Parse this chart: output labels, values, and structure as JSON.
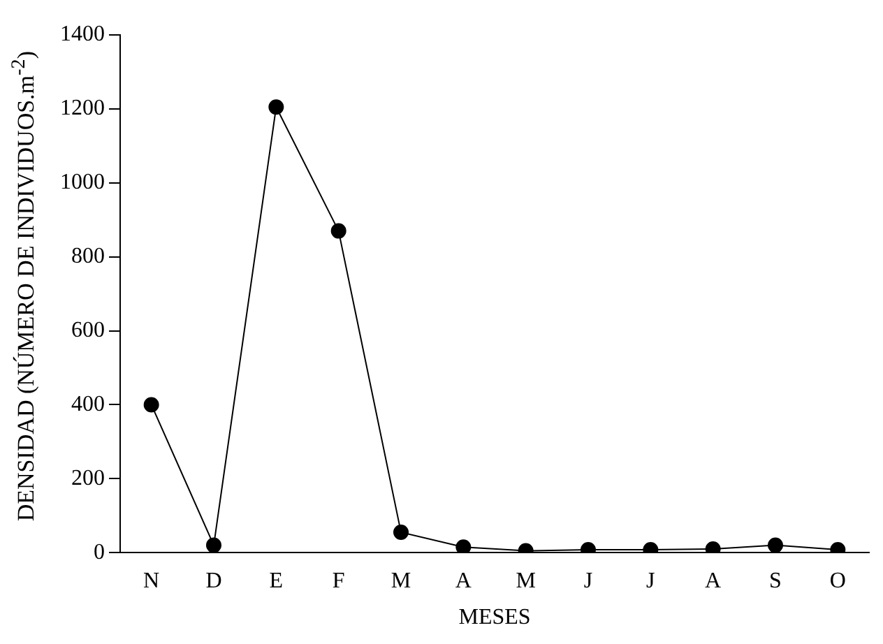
{
  "chart_data": {
    "type": "line",
    "xlabel": "MESES",
    "ylabel": "DENSIDAD (NÚMERO DE INDIVIDUOS.m$^{-2}$)",
    "categories": [
      "N",
      "D",
      "E",
      "F",
      "M",
      "A",
      "M",
      "J",
      "J",
      "A",
      "S",
      "O"
    ],
    "series": [
      {
        "color": "#000000",
        "values": [
          400,
          20,
          1205,
          870,
          55,
          15,
          5,
          8,
          8,
          10,
          20,
          8
        ]
      }
    ],
    "ylim": [
      0,
      1400
    ],
    "yticks": [
      0,
      200,
      400,
      600,
      800,
      1000,
      1200,
      1400
    ],
    "grid": false,
    "legend": false,
    "marker": "circle",
    "line_style": "solid"
  }
}
